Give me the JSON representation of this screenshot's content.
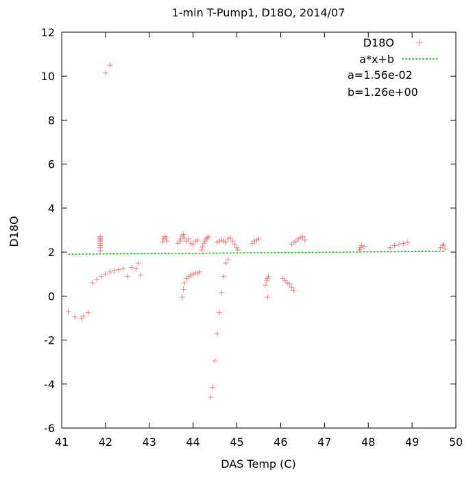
{
  "chart_data": {
    "type": "scatter",
    "title": "1-min T-Pump1, D18O, 2014/07",
    "xlabel": "DAS Temp (C)",
    "ylabel": "D18O",
    "xlim": [
      41,
      50
    ],
    "ylim": [
      -6,
      12
    ],
    "x_ticks": [
      41,
      42,
      43,
      44,
      45,
      46,
      47,
      48,
      49,
      50
    ],
    "y_ticks": [
      -6,
      -4,
      -2,
      0,
      2,
      4,
      6,
      8,
      10,
      12
    ],
    "grid": false,
    "legend_position": "top-right",
    "colors": {
      "points": "#f08080",
      "fit": "#00cc00"
    },
    "series": [
      {
        "name": "D18O",
        "style": "plus-markers",
        "x": [
          41.15,
          41.3,
          41.45,
          41.5,
          41.6,
          41.7,
          41.8,
          41.9,
          42.0,
          42.1,
          42.2,
          42.3,
          42.4,
          42.5,
          42.6,
          42.7,
          42.75,
          42.8,
          41.88,
          41.88,
          41.88,
          41.88,
          41.88,
          41.88,
          41.88,
          41.88,
          41.88,
          42.0,
          42.1,
          43.3,
          43.32,
          43.35,
          43.38,
          43.4,
          43.65,
          43.7,
          43.72,
          43.75,
          43.78,
          43.8,
          43.85,
          43.9,
          43.95,
          44.0,
          44.05,
          44.1,
          44.2,
          44.22,
          44.25,
          44.27,
          44.3,
          44.32,
          44.35,
          44.55,
          44.6,
          44.65,
          44.7,
          44.75,
          44.8,
          44.85,
          44.9,
          44.95,
          45.0,
          45.02,
          45.35,
          45.4,
          45.45,
          45.5,
          46.25,
          46.3,
          46.35,
          46.4,
          46.45,
          46.5,
          46.55,
          47.8,
          47.82,
          47.85,
          47.9,
          48.5,
          48.6,
          48.7,
          48.8,
          48.9,
          49.65,
          49.7,
          49.72,
          49.75,
          43.75,
          43.78,
          43.8,
          43.85,
          43.9,
          43.95,
          44.0,
          44.05,
          44.1,
          44.15,
          44.4,
          44.45,
          44.5,
          44.55,
          44.6,
          44.65,
          44.7,
          44.75,
          44.8,
          45.65,
          45.68,
          45.7,
          45.72,
          45.7,
          46.05,
          46.1,
          46.15,
          46.2,
          46.25,
          46.3
        ],
        "y": [
          -0.7,
          -0.95,
          -1.0,
          -0.9,
          -0.75,
          0.6,
          0.75,
          0.9,
          1.0,
          1.1,
          1.15,
          1.2,
          1.25,
          0.9,
          1.3,
          1.25,
          1.5,
          0.95,
          2.05,
          2.2,
          2.3,
          2.4,
          2.5,
          2.55,
          2.6,
          2.65,
          2.7,
          10.15,
          10.5,
          2.45,
          2.6,
          2.7,
          2.65,
          2.5,
          2.4,
          2.5,
          2.6,
          2.75,
          2.8,
          2.65,
          2.5,
          2.6,
          2.4,
          2.35,
          2.5,
          2.55,
          2.1,
          2.25,
          2.4,
          2.5,
          2.6,
          2.65,
          2.7,
          2.45,
          2.5,
          2.55,
          2.5,
          2.45,
          2.6,
          2.65,
          2.5,
          2.35,
          2.2,
          2.1,
          2.4,
          2.5,
          2.55,
          2.6,
          2.35,
          2.45,
          2.5,
          2.6,
          2.65,
          2.7,
          2.55,
          2.1,
          2.2,
          2.3,
          2.25,
          2.2,
          2.3,
          2.35,
          2.4,
          2.45,
          2.2,
          2.3,
          2.35,
          2.15,
          -0.05,
          0.3,
          0.6,
          0.8,
          0.9,
          0.95,
          1.0,
          1.05,
          1.05,
          1.1,
          -4.6,
          -4.15,
          -2.95,
          -1.7,
          -0.75,
          0.15,
          0.9,
          1.5,
          1.65,
          0.5,
          0.7,
          0.8,
          0.9,
          -0.05,
          0.8,
          0.7,
          0.6,
          0.55,
          0.4,
          0.25
        ]
      },
      {
        "name": "a*x+b",
        "style": "dashed-line",
        "x": [
          41.15,
          49.75
        ],
        "y": [
          1.902,
          2.036
        ]
      }
    ],
    "annotations": [
      "a=1.56e-02",
      "b=1.26e+00"
    ]
  }
}
